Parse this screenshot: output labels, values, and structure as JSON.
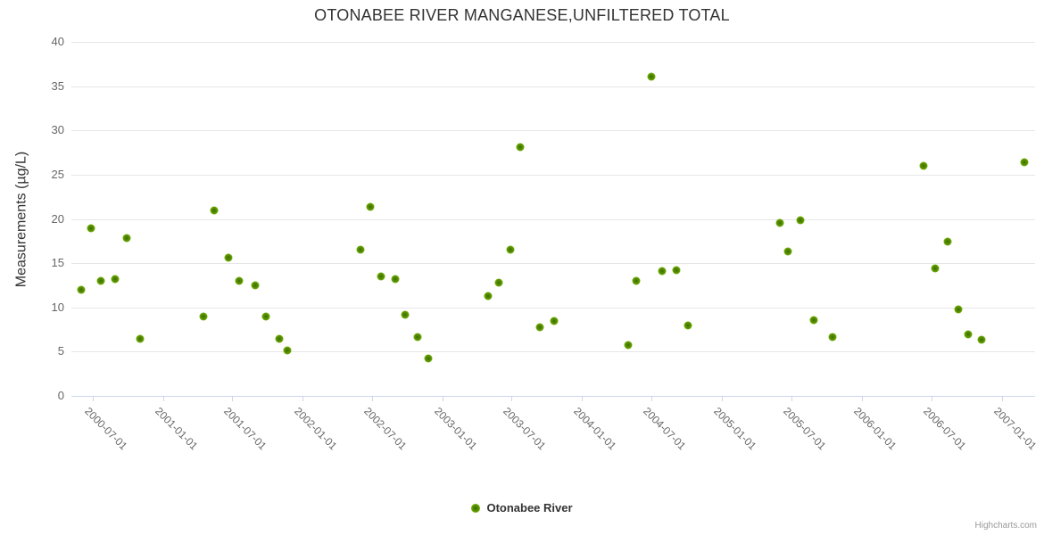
{
  "chart": {
    "title": "OTONABEE RIVER MANGANESE,UNFILTERED TOTAL",
    "y_axis_title": "Measurements (µg/L)",
    "legend": {
      "label": "Otonabee River"
    },
    "credits": "Highcharts.com",
    "colors": {
      "marker_green": "#74b007",
      "grid": "#e6e6e6",
      "axis_line": "#ccd6eb",
      "label_gray": "#666666",
      "title_gray": "#333333"
    }
  },
  "chart_data": {
    "type": "scatter",
    "title": "OTONABEE RIVER MANGANESE,UNFILTERED TOTAL",
    "xlabel": "",
    "ylabel": "Measurements (µg/L)",
    "ylim": [
      0,
      40
    ],
    "y_ticks": [
      0,
      5,
      10,
      15,
      20,
      25,
      30,
      35,
      40
    ],
    "xlim": [
      "2000-05-07",
      "2007-03-29"
    ],
    "x_ticks": [
      "2000-07-01",
      "2001-01-01",
      "2001-07-01",
      "2002-01-01",
      "2002-07-01",
      "2003-01-01",
      "2003-07-01",
      "2004-01-01",
      "2004-07-01",
      "2005-01-01",
      "2005-07-01",
      "2006-01-01",
      "2006-07-01",
      "2007-01-01"
    ],
    "grid": "horizontal-only",
    "legend_position": "bottom-center",
    "series": [
      {
        "name": "Otonabee River",
        "color": "#74b007",
        "points": [
          {
            "date": "2000-06-02",
            "value": 12.0
          },
          {
            "date": "2000-06-27",
            "value": 18.9
          },
          {
            "date": "2000-07-24",
            "value": 13.0
          },
          {
            "date": "2000-08-30",
            "value": 13.2
          },
          {
            "date": "2000-09-28",
            "value": 17.8
          },
          {
            "date": "2000-11-03",
            "value": 6.4
          },
          {
            "date": "2001-04-18",
            "value": 9.0
          },
          {
            "date": "2001-05-15",
            "value": 21.0
          },
          {
            "date": "2001-06-21",
            "value": 15.6
          },
          {
            "date": "2001-07-20",
            "value": 13.0
          },
          {
            "date": "2001-08-30",
            "value": 12.5
          },
          {
            "date": "2001-09-27",
            "value": 9.0
          },
          {
            "date": "2001-11-01",
            "value": 6.4
          },
          {
            "date": "2001-11-23",
            "value": 5.1
          },
          {
            "date": "2002-05-31",
            "value": 16.5
          },
          {
            "date": "2002-06-27",
            "value": 21.4
          },
          {
            "date": "2002-07-24",
            "value": 13.5
          },
          {
            "date": "2002-08-31",
            "value": 13.2
          },
          {
            "date": "2002-09-26",
            "value": 9.2
          },
          {
            "date": "2002-10-29",
            "value": 6.7
          },
          {
            "date": "2002-11-26",
            "value": 4.2
          },
          {
            "date": "2003-04-30",
            "value": 11.3
          },
          {
            "date": "2003-05-29",
            "value": 12.8
          },
          {
            "date": "2003-06-27",
            "value": 16.5
          },
          {
            "date": "2003-07-23",
            "value": 28.1
          },
          {
            "date": "2003-09-13",
            "value": 7.8
          },
          {
            "date": "2003-10-20",
            "value": 8.5
          },
          {
            "date": "2004-05-01",
            "value": 5.7
          },
          {
            "date": "2004-05-21",
            "value": 13.0
          },
          {
            "date": "2004-06-30",
            "value": 36.1
          },
          {
            "date": "2004-07-27",
            "value": 14.1
          },
          {
            "date": "2004-09-03",
            "value": 14.2
          },
          {
            "date": "2004-10-03",
            "value": 8.0
          },
          {
            "date": "2005-06-01",
            "value": 19.5
          },
          {
            "date": "2005-06-22",
            "value": 16.3
          },
          {
            "date": "2005-07-23",
            "value": 19.8
          },
          {
            "date": "2005-08-27",
            "value": 8.6
          },
          {
            "date": "2005-10-15",
            "value": 6.7
          },
          {
            "date": "2006-06-11",
            "value": 26.0
          },
          {
            "date": "2006-07-10",
            "value": 14.4
          },
          {
            "date": "2006-08-12",
            "value": 17.4
          },
          {
            "date": "2006-09-10",
            "value": 9.8
          },
          {
            "date": "2006-10-05",
            "value": 7.0
          },
          {
            "date": "2006-11-09",
            "value": 6.3
          },
          {
            "date": "2007-03-02",
            "value": 26.4
          }
        ]
      }
    ]
  }
}
